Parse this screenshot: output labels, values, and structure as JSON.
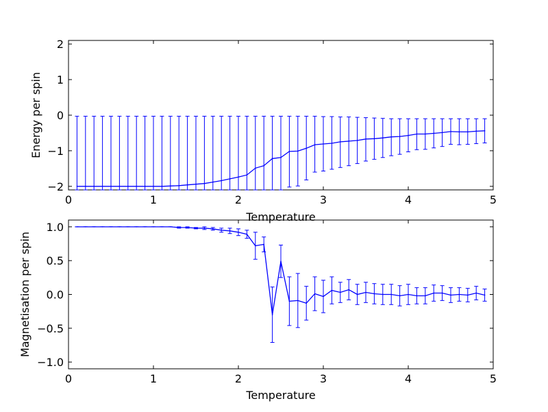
{
  "chart_data": [
    {
      "type": "line",
      "xlabel": "Temperature",
      "ylabel": "Energy per spin",
      "xlim": [
        0,
        5
      ],
      "ylim": [
        -2.1,
        2.1
      ],
      "xticks": [
        "0",
        "1",
        "2",
        "3",
        "4",
        "5"
      ],
      "yticks": [
        "−2",
        "−1",
        "0",
        "1",
        "2"
      ],
      "grid": false,
      "color": "#0000ff",
      "x": [
        0.1,
        0.2,
        0.3,
        0.4,
        0.5,
        0.6,
        0.7,
        0.8,
        0.9,
        1.0,
        1.1,
        1.2,
        1.3,
        1.4,
        1.5,
        1.6,
        1.7,
        1.8,
        1.9,
        2.0,
        2.1,
        2.2,
        2.3,
        2.4,
        2.5,
        2.6,
        2.7,
        2.8,
        2.9,
        3.0,
        3.1,
        3.2,
        3.3,
        3.4,
        3.5,
        3.6,
        3.7,
        3.8,
        3.9,
        4.0,
        4.1,
        4.2,
        4.3,
        4.4,
        4.5,
        4.6,
        4.7,
        4.8,
        4.9
      ],
      "y": [
        -2.0,
        -2.0,
        -2.0,
        -2.0,
        -2.0,
        -2.0,
        -2.0,
        -2.0,
        -2.0,
        -2.0,
        -2.0,
        -1.99,
        -1.98,
        -1.96,
        -1.94,
        -1.92,
        -1.88,
        -1.84,
        -1.79,
        -1.74,
        -1.68,
        -1.49,
        -1.42,
        -1.22,
        -1.19,
        -1.02,
        -1.01,
        -0.93,
        -0.83,
        -0.81,
        -0.79,
        -0.75,
        -0.73,
        -0.71,
        -0.67,
        -0.66,
        -0.64,
        -0.61,
        -0.6,
        -0.57,
        -0.53,
        -0.53,
        -0.51,
        -0.49,
        -0.46,
        -0.47,
        -0.47,
        -0.45,
        -0.44
      ],
      "yerr_upper": [
        -0.03,
        -0.03,
        -0.03,
        -0.03,
        -0.03,
        -0.03,
        -0.03,
        -0.03,
        -0.03,
        -0.03,
        -0.03,
        -0.03,
        -0.03,
        -0.03,
        -0.03,
        -0.03,
        -0.03,
        -0.03,
        -0.03,
        -0.03,
        -0.03,
        -0.03,
        -0.03,
        -0.03,
        -0.03,
        -0.03,
        -0.03,
        -0.03,
        -0.03,
        -0.04,
        -0.04,
        -0.05,
        -0.05,
        -0.06,
        -0.07,
        -0.08,
        -0.09,
        -0.1,
        -0.1,
        -0.1,
        -0.1,
        -0.1,
        -0.1,
        -0.1,
        -0.1,
        -0.1,
        -0.1,
        -0.1,
        -0.1
      ],
      "yerr_lower": [
        -2.1,
        -2.1,
        -2.1,
        -2.1,
        -2.1,
        -2.1,
        -2.1,
        -2.1,
        -2.1,
        -2.1,
        -2.1,
        -2.1,
        -2.1,
        -2.1,
        -2.1,
        -2.1,
        -2.1,
        -2.1,
        -2.1,
        -2.1,
        -2.1,
        -2.1,
        -2.1,
        -2.1,
        -2.1,
        -2.02,
        -1.99,
        -1.82,
        -1.6,
        -1.57,
        -1.52,
        -1.47,
        -1.42,
        -1.36,
        -1.29,
        -1.24,
        -1.19,
        -1.14,
        -1.1,
        -1.03,
        -0.97,
        -0.96,
        -0.92,
        -0.88,
        -0.82,
        -0.83,
        -0.82,
        -0.8,
        -0.78
      ]
    },
    {
      "type": "line",
      "xlabel": "Temperature",
      "ylabel": "Magnetisation per spin",
      "xlim": [
        0,
        5
      ],
      "ylim": [
        -1.1,
        1.1
      ],
      "xticks": [
        "0",
        "1",
        "2",
        "3",
        "4",
        "5"
      ],
      "yticks": [
        "−1.0",
        "−0.5",
        "0.0",
        "0.5",
        "1.0"
      ],
      "grid": false,
      "color": "#0000ff",
      "x": [
        0.1,
        0.2,
        0.3,
        0.4,
        0.5,
        0.6,
        0.7,
        0.8,
        0.9,
        1.0,
        1.1,
        1.2,
        1.3,
        1.4,
        1.5,
        1.6,
        1.7,
        1.8,
        1.9,
        2.0,
        2.1,
        2.2,
        2.3,
        2.4,
        2.5,
        2.6,
        2.7,
        2.8,
        2.9,
        3.0,
        3.1,
        3.2,
        3.3,
        3.4,
        3.5,
        3.6,
        3.7,
        3.8,
        3.9,
        4.0,
        4.1,
        4.2,
        4.3,
        4.4,
        4.5,
        4.6,
        4.7,
        4.8,
        4.9
      ],
      "y": [
        1.0,
        1.0,
        1.0,
        1.0,
        1.0,
        1.0,
        1.0,
        1.0,
        1.0,
        1.0,
        1.0,
        1.0,
        0.99,
        0.99,
        0.98,
        0.98,
        0.97,
        0.95,
        0.94,
        0.92,
        0.89,
        0.72,
        0.74,
        -0.3,
        0.49,
        -0.1,
        -0.09,
        -0.13,
        0.01,
        -0.03,
        0.06,
        0.03,
        0.07,
        0.0,
        0.03,
        0.01,
        0.0,
        0.0,
        -0.02,
        0.0,
        -0.02,
        -0.02,
        0.02,
        0.02,
        -0.01,
        0.0,
        -0.01,
        0.02,
        -0.01
      ],
      "yerr": [
        0.0,
        0.0,
        0.0,
        0.0,
        0.0,
        0.0,
        0.0,
        0.0,
        0.0,
        0.0,
        0.0,
        0.0,
        0.01,
        0.01,
        0.01,
        0.02,
        0.02,
        0.03,
        0.04,
        0.05,
        0.06,
        0.2,
        0.11,
        0.41,
        0.24,
        0.36,
        0.4,
        0.25,
        0.25,
        0.24,
        0.2,
        0.15,
        0.15,
        0.15,
        0.15,
        0.15,
        0.15,
        0.15,
        0.15,
        0.15,
        0.12,
        0.12,
        0.12,
        0.11,
        0.11,
        0.1,
        0.1,
        0.1,
        0.09
      ]
    }
  ]
}
